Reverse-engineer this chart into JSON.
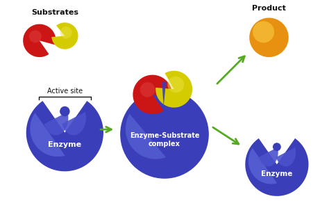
{
  "background_color": "#ffffff",
  "enzyme_color_dark": "#3a3eb8",
  "enzyme_color_mid": "#4a52cc",
  "enzyme_color_light": "#6a78e8",
  "substrate_red": "#cc1515",
  "substrate_red_highlight": "#dd4040",
  "substrate_yellow": "#d4cc00",
  "substrate_yellow_highlight": "#e8e040",
  "product_color": "#e89010",
  "product_highlight": "#f8c840",
  "arrow_color": "#55aa22",
  "text_color": "#111111",
  "label_enzyme1": "Enzyme",
  "label_enzyme2": "Enzyme-Substrate\ncomplex",
  "label_enzyme3": "Enzyme",
  "label_substrates": "Substrates",
  "label_product": "Product",
  "label_active": "Active site"
}
